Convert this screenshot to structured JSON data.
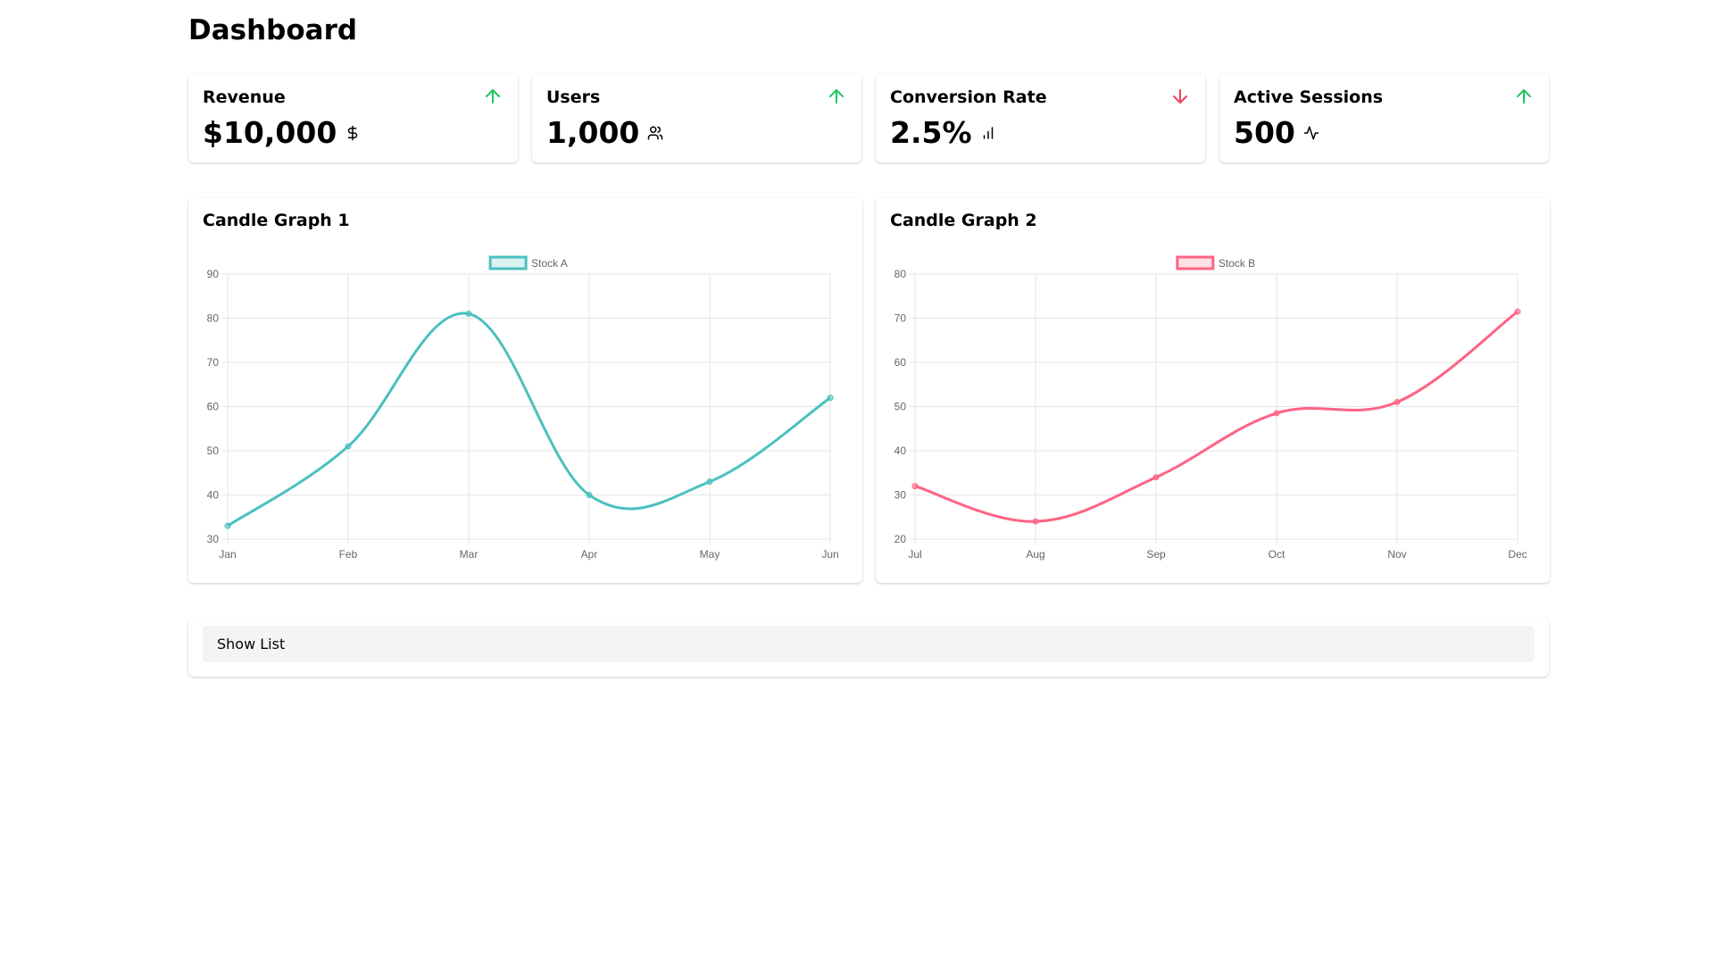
{
  "page": {
    "title": "Dashboard"
  },
  "stats": [
    {
      "title": "Revenue",
      "value": "$10,000",
      "trend": "up",
      "icon": "dollar-icon"
    },
    {
      "title": "Users",
      "value": "1,000",
      "trend": "up",
      "icon": "users-icon"
    },
    {
      "title": "Conversion Rate",
      "value": "2.5%",
      "trend": "down",
      "icon": "bar-chart-icon"
    },
    {
      "title": "Active Sessions",
      "value": "500",
      "trend": "up",
      "icon": "activity-icon"
    }
  ],
  "colors": {
    "up": "#22c55e",
    "down": "#f43f5e",
    "stock_a": "#4bc0c0",
    "stock_b": "#ff6384"
  },
  "chart_data": [
    {
      "type": "line",
      "title": "Candle Graph 1",
      "categories": [
        "Jan",
        "Feb",
        "Mar",
        "Apr",
        "May",
        "Jun"
      ],
      "series": [
        {
          "name": "Stock A",
          "values": [
            33,
            51,
            81,
            40,
            43,
            62
          ]
        }
      ],
      "ylim": [
        30,
        90
      ],
      "yticks": [
        30,
        40,
        50,
        60,
        70,
        80,
        90
      ],
      "grid": true,
      "legend": "top-center"
    },
    {
      "type": "line",
      "title": "Candle Graph 2",
      "categories": [
        "Jul",
        "Aug",
        "Sep",
        "Oct",
        "Nov",
        "Dec"
      ],
      "series": [
        {
          "name": "Stock B",
          "values": [
            32,
            24,
            34,
            48.5,
            51,
            71.5
          ]
        }
      ],
      "ylim": [
        20,
        80
      ],
      "yticks": [
        20,
        30,
        40,
        50,
        60,
        70,
        80
      ],
      "grid": true,
      "legend": "top-center"
    }
  ],
  "list": {
    "button_label": "Show List"
  }
}
